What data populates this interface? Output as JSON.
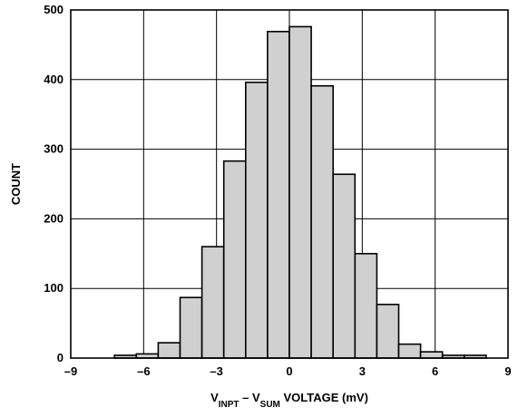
{
  "chart_data": {
    "type": "bar",
    "xlabel": {
      "parts": [
        {
          "text": "V",
          "sub": false
        },
        {
          "text": "INPT",
          "sub": true
        },
        {
          "text": " – V",
          "sub": false
        },
        {
          "text": "SUM",
          "sub": true
        },
        {
          "text": " VOLTAGE (mV)",
          "sub": false
        }
      ]
    },
    "ylabel": "COUNT",
    "xlim": [
      -9,
      9
    ],
    "ylim": [
      0,
      500
    ],
    "x_ticks": [
      -9,
      -6,
      -3,
      0,
      3,
      6,
      9
    ],
    "x_tick_labels": [
      "–9",
      "–6",
      "–3",
      "0",
      "3",
      "6",
      "9"
    ],
    "y_ticks": [
      0,
      100,
      200,
      300,
      400,
      500
    ],
    "y_tick_labels": [
      "0",
      "100",
      "200",
      "300",
      "400",
      "500"
    ],
    "grid": true,
    "bin_width": 0.9,
    "bins": [
      {
        "start": -7.2,
        "value": 4
      },
      {
        "start": -6.3,
        "value": 6
      },
      {
        "start": -5.4,
        "value": 22
      },
      {
        "start": -4.5,
        "value": 87
      },
      {
        "start": -3.6,
        "value": 160
      },
      {
        "start": -2.7,
        "value": 283
      },
      {
        "start": -1.8,
        "value": 396
      },
      {
        "start": -0.9,
        "value": 469
      },
      {
        "start": -0.0,
        "value": 476
      },
      {
        "start": 0.9,
        "value": 391
      },
      {
        "start": 1.8,
        "value": 264
      },
      {
        "start": 2.7,
        "value": 150
      },
      {
        "start": 3.6,
        "value": 77
      },
      {
        "start": 4.5,
        "value": 20
      },
      {
        "start": 5.4,
        "value": 9
      },
      {
        "start": 6.3,
        "value": 4
      },
      {
        "start": 7.2,
        "value": 4
      }
    ],
    "colors": {
      "bar_fill": "#d0d0d0",
      "bar_stroke": "#000000",
      "grid": "#000000"
    }
  }
}
